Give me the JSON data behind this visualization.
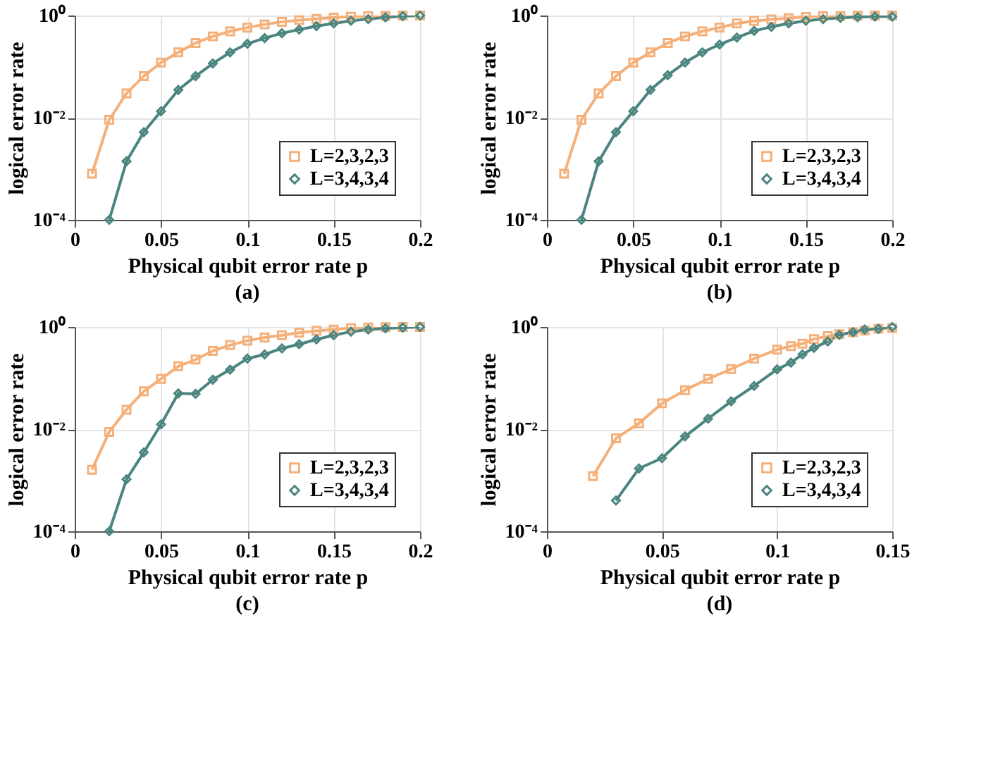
{
  "chart_data": [
    {
      "type": "line",
      "title": "(a)",
      "xlabel": "Physical qubit error rate p",
      "ylabel": "logical error rate",
      "log": "y",
      "grid": true,
      "legend": "bottom right",
      "line_style": "solid",
      "xlim": [
        0,
        0.2
      ],
      "xticks": [
        0,
        0.05,
        0.1,
        0.15,
        0.2
      ],
      "ylim": [
        0.0001,
        1
      ],
      "yticks": [
        {
          "value": 0.0001,
          "label": "10⁻⁴"
        },
        {
          "value": 0.01,
          "label": "10⁻²"
        },
        {
          "value": 1,
          "label": "10⁰"
        }
      ],
      "series": [
        {
          "name": "L=2,3,2,3",
          "color": "#f5b07a",
          "marker": "square",
          "x": [
            0.01,
            0.02,
            0.03,
            0.04,
            0.05,
            0.06,
            0.07,
            0.08,
            0.09,
            0.1,
            0.11,
            0.12,
            0.13,
            0.14,
            0.15,
            0.16,
            0.17,
            0.18,
            0.19,
            0.2
          ],
          "values": [
            0.0008,
            0.0091,
            0.03,
            0.065,
            0.12,
            0.19,
            0.29,
            0.39,
            0.49,
            0.58,
            0.67,
            0.75,
            0.81,
            0.86,
            0.91,
            0.95,
            0.97,
            0.98,
            0.99,
            1.0
          ]
        },
        {
          "name": "L=3,4,3,4",
          "color": "#4a8580",
          "marker": "diamond",
          "x": [
            0.02,
            0.03,
            0.04,
            0.05,
            0.06,
            0.07,
            0.08,
            0.09,
            0.1,
            0.11,
            0.12,
            0.13,
            0.14,
            0.15,
            0.16,
            0.17,
            0.18,
            0.19,
            0.2
          ],
          "values": [
            0.0001,
            0.0014,
            0.0052,
            0.0134,
            0.035,
            0.065,
            0.115,
            0.19,
            0.28,
            0.36,
            0.45,
            0.53,
            0.62,
            0.7,
            0.79,
            0.85,
            0.92,
            0.97,
            1.0
          ]
        }
      ]
    },
    {
      "type": "line",
      "title": "(b)",
      "xlabel": "Physical qubit error rate p",
      "ylabel": "logical error rate",
      "log": "y",
      "grid": true,
      "legend": "bottom right",
      "line_style": "solid",
      "xlim": [
        0,
        0.2
      ],
      "xticks": [
        0,
        0.05,
        0.1,
        0.15,
        0.2
      ],
      "ylim": [
        0.0001,
        1
      ],
      "yticks": [
        {
          "value": 0.0001,
          "label": "10⁻⁴"
        },
        {
          "value": 0.01,
          "label": "10⁻²"
        },
        {
          "value": 1,
          "label": "10⁰"
        }
      ],
      "series": [
        {
          "name": "L=2,3,2,3",
          "color": "#f5b07a",
          "marker": "square",
          "x": [
            0.01,
            0.02,
            0.03,
            0.04,
            0.05,
            0.06,
            0.07,
            0.08,
            0.09,
            0.1,
            0.11,
            0.12,
            0.13,
            0.14,
            0.15,
            0.16,
            0.17,
            0.18,
            0.19,
            0.2
          ],
          "values": [
            0.0008,
            0.0091,
            0.03,
            0.065,
            0.12,
            0.19,
            0.29,
            0.39,
            0.49,
            0.58,
            0.7,
            0.78,
            0.84,
            0.89,
            0.94,
            0.97,
            0.98,
            0.99,
            1.0,
            1.0
          ]
        },
        {
          "name": "L=3,4,3,4",
          "color": "#4a8580",
          "marker": "diamond",
          "x": [
            0.02,
            0.03,
            0.04,
            0.05,
            0.06,
            0.07,
            0.08,
            0.09,
            0.1,
            0.11,
            0.12,
            0.13,
            0.14,
            0.15,
            0.16,
            0.17,
            0.18,
            0.19,
            0.2
          ],
          "values": [
            0.0001,
            0.0014,
            0.0052,
            0.0134,
            0.035,
            0.068,
            0.12,
            0.19,
            0.27,
            0.37,
            0.5,
            0.6,
            0.7,
            0.79,
            0.85,
            0.9,
            0.93,
            0.95,
            0.95
          ]
        }
      ]
    },
    {
      "type": "line",
      "title": "(c)",
      "xlabel": "Physical qubit error rate p",
      "ylabel": "logical error rate",
      "log": "y",
      "grid": true,
      "legend": "bottom right",
      "line_style": "solid",
      "xlim": [
        0,
        0.2
      ],
      "xticks": [
        0,
        0.05,
        0.1,
        0.15,
        0.2
      ],
      "ylim": [
        0.0001,
        1
      ],
      "yticks": [
        {
          "value": 0.0001,
          "label": "10⁻⁴"
        },
        {
          "value": 0.01,
          "label": "10⁻²"
        },
        {
          "value": 1,
          "label": "10⁰"
        }
      ],
      "series": [
        {
          "name": "L=2,3,2,3",
          "color": "#f5b07a",
          "marker": "square",
          "x": [
            0.01,
            0.02,
            0.03,
            0.04,
            0.05,
            0.06,
            0.07,
            0.08,
            0.09,
            0.1,
            0.11,
            0.12,
            0.13,
            0.14,
            0.15,
            0.16,
            0.17,
            0.18,
            0.19,
            0.2
          ],
          "values": [
            0.0016,
            0.0088,
            0.024,
            0.055,
            0.096,
            0.17,
            0.23,
            0.34,
            0.44,
            0.54,
            0.62,
            0.69,
            0.77,
            0.84,
            0.89,
            0.95,
            0.98,
            0.99,
            1.0,
            1.0
          ]
        },
        {
          "name": "L=3,4,3,4",
          "color": "#4a8580",
          "marker": "diamond",
          "x": [
            0.02,
            0.03,
            0.04,
            0.05,
            0.06,
            0.07,
            0.08,
            0.09,
            0.1,
            0.11,
            0.12,
            0.13,
            0.14,
            0.15,
            0.16,
            0.17,
            0.18,
            0.19,
            0.2
          ],
          "values": [
            0.0001,
            0.00104,
            0.0035,
            0.0124,
            0.05,
            0.049,
            0.093,
            0.146,
            0.24,
            0.29,
            0.38,
            0.46,
            0.57,
            0.69,
            0.81,
            0.89,
            0.94,
            0.97,
            1.0
          ]
        }
      ]
    },
    {
      "type": "line",
      "title": "(d)",
      "xlabel": "Physical qubit error rate p",
      "ylabel": "logical error rate",
      "log": "y",
      "grid": true,
      "legend": "bottom right",
      "line_style": "solid",
      "xlim": [
        0,
        0.15
      ],
      "xticks": [
        0,
        0.05,
        0.1,
        0.15
      ],
      "ylim": [
        0.0001,
        1
      ],
      "yticks": [
        {
          "value": 0.0001,
          "label": "10⁻⁴"
        },
        {
          "value": 0.01,
          "label": "10⁻²"
        },
        {
          "value": 1,
          "label": "10⁰"
        }
      ],
      "series": [
        {
          "name": "L=2,3,2,3",
          "color": "#f5b07a",
          "marker": "square",
          "x": [
            0.02,
            0.03,
            0.04,
            0.05,
            0.06,
            0.07,
            0.08,
            0.09,
            0.1,
            0.106,
            0.111,
            0.116,
            0.122,
            0.127,
            0.133,
            0.138,
            0.144,
            0.15
          ],
          "values": [
            0.0012,
            0.0066,
            0.013,
            0.032,
            0.058,
            0.096,
            0.15,
            0.24,
            0.36,
            0.42,
            0.47,
            0.58,
            0.66,
            0.72,
            0.79,
            0.85,
            0.92,
            0.95
          ]
        },
        {
          "name": "L=3,4,3,4",
          "color": "#4a8580",
          "marker": "diamond",
          "x": [
            0.03,
            0.04,
            0.05,
            0.06,
            0.07,
            0.08,
            0.09,
            0.1,
            0.106,
            0.111,
            0.116,
            0.122,
            0.127,
            0.133,
            0.138,
            0.144,
            0.15
          ],
          "values": [
            0.0004,
            0.0017,
            0.0027,
            0.0072,
            0.016,
            0.035,
            0.07,
            0.148,
            0.2,
            0.29,
            0.39,
            0.52,
            0.7,
            0.79,
            0.89,
            0.92,
            1.0
          ]
        }
      ]
    }
  ]
}
